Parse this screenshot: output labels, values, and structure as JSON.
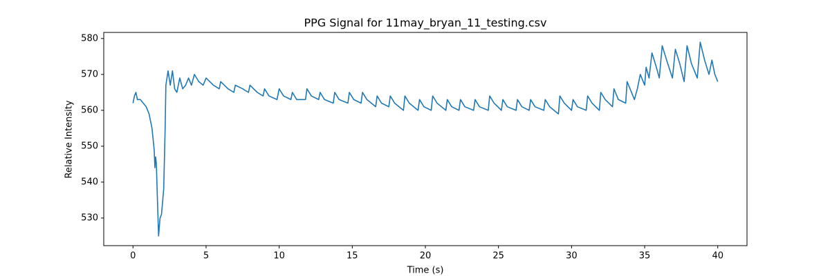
{
  "chart_data": {
    "type": "line",
    "title": "PPG Signal for 11may_bryan_11_testing.csv",
    "xlabel": "Time (s)",
    "ylabel": "Relative Intensity",
    "color": "#1f77b4",
    "grid": false,
    "xlim": [
      -2,
      42
    ],
    "ylim": [
      522.3,
      581.7
    ],
    "xticks": [
      0,
      5,
      10,
      15,
      20,
      25,
      30,
      35,
      40
    ],
    "yticks": [
      530,
      540,
      550,
      560,
      570,
      580
    ],
    "x": [
      0,
      0.1,
      0.2,
      0.3,
      0.5,
      0.7,
      0.9,
      1.1,
      1.3,
      1.45,
      1.5,
      1.55,
      1.6,
      1.65,
      1.75,
      1.85,
      1.95,
      2.1,
      2.2,
      2.25,
      2.4,
      2.55,
      2.7,
      2.85,
      3.0,
      3.2,
      3.4,
      3.6,
      3.8,
      4.0,
      4.2,
      4.5,
      4.8,
      5.0,
      5.5,
      5.9,
      6.0,
      6.5,
      6.9,
      7.0,
      7.5,
      7.9,
      8.0,
      8.5,
      8.9,
      9.0,
      9.3,
      9.85,
      10.0,
      10.3,
      10.8,
      10.9,
      11.2,
      11.8,
      11.9,
      12.2,
      12.7,
      12.8,
      13.1,
      13.7,
      13.8,
      14.1,
      14.7,
      14.8,
      15.1,
      15.6,
      15.7,
      16.0,
      16.6,
      16.7,
      17.0,
      17.5,
      17.6,
      17.9,
      18.5,
      18.6,
      18.9,
      19.5,
      19.6,
      19.9,
      20.4,
      20.5,
      20.8,
      21.4,
      21.5,
      21.8,
      22.3,
      22.4,
      22.7,
      23.3,
      23.4,
      23.7,
      24.3,
      24.4,
      24.7,
      25.2,
      25.3,
      25.6,
      26.2,
      26.3,
      26.6,
      27.1,
      27.2,
      27.5,
      28.1,
      28.2,
      28.5,
      29.1,
      29.2,
      29.5,
      30.0,
      30.1,
      30.4,
      31.0,
      31.1,
      31.4,
      31.9,
      32.0,
      32.3,
      32.8,
      32.9,
      33.2,
      33.7,
      33.8,
      34.1,
      34.3,
      34.5,
      34.7,
      35.0,
      35.1,
      35.3,
      35.5,
      35.8,
      36.0,
      36.2,
      36.5,
      36.9,
      37.1,
      37.4,
      37.7,
      37.9,
      38.2,
      38.6,
      38.8,
      39.1,
      39.4,
      39.6,
      39.8,
      40.0
    ],
    "values": [
      562,
      564,
      565,
      563,
      563,
      562,
      561,
      559,
      555,
      549,
      544,
      547,
      545,
      538,
      525,
      530,
      531,
      538,
      555,
      567,
      571,
      567,
      571,
      566,
      565,
      569,
      566,
      567,
      569,
      567,
      570,
      568,
      567,
      569,
      567,
      566,
      568,
      566,
      565,
      567,
      566,
      565,
      567,
      565,
      564,
      566,
      564,
      563,
      566,
      564,
      563,
      565,
      563,
      563,
      566,
      564,
      563,
      565,
      563,
      562,
      565,
      563,
      562,
      565,
      563,
      562,
      565,
      563,
      561,
      564,
      562,
      561,
      564,
      562,
      560,
      564,
      562,
      560,
      563,
      561,
      560,
      564,
      562,
      560,
      563,
      561,
      560,
      563,
      561,
      560,
      563,
      561,
      560,
      564,
      562,
      560,
      563,
      561,
      560,
      563,
      561,
      560,
      563,
      561,
      560,
      563,
      561,
      559,
      564,
      562,
      560,
      563,
      561,
      560,
      564,
      562,
      560,
      565,
      563,
      561,
      566,
      563,
      562,
      568,
      565,
      563,
      566,
      570,
      567,
      572,
      569,
      576,
      572,
      569,
      578,
      574,
      569,
      577,
      573,
      568,
      578,
      573,
      569,
      579,
      574,
      570,
      574,
      570,
      568
    ]
  }
}
